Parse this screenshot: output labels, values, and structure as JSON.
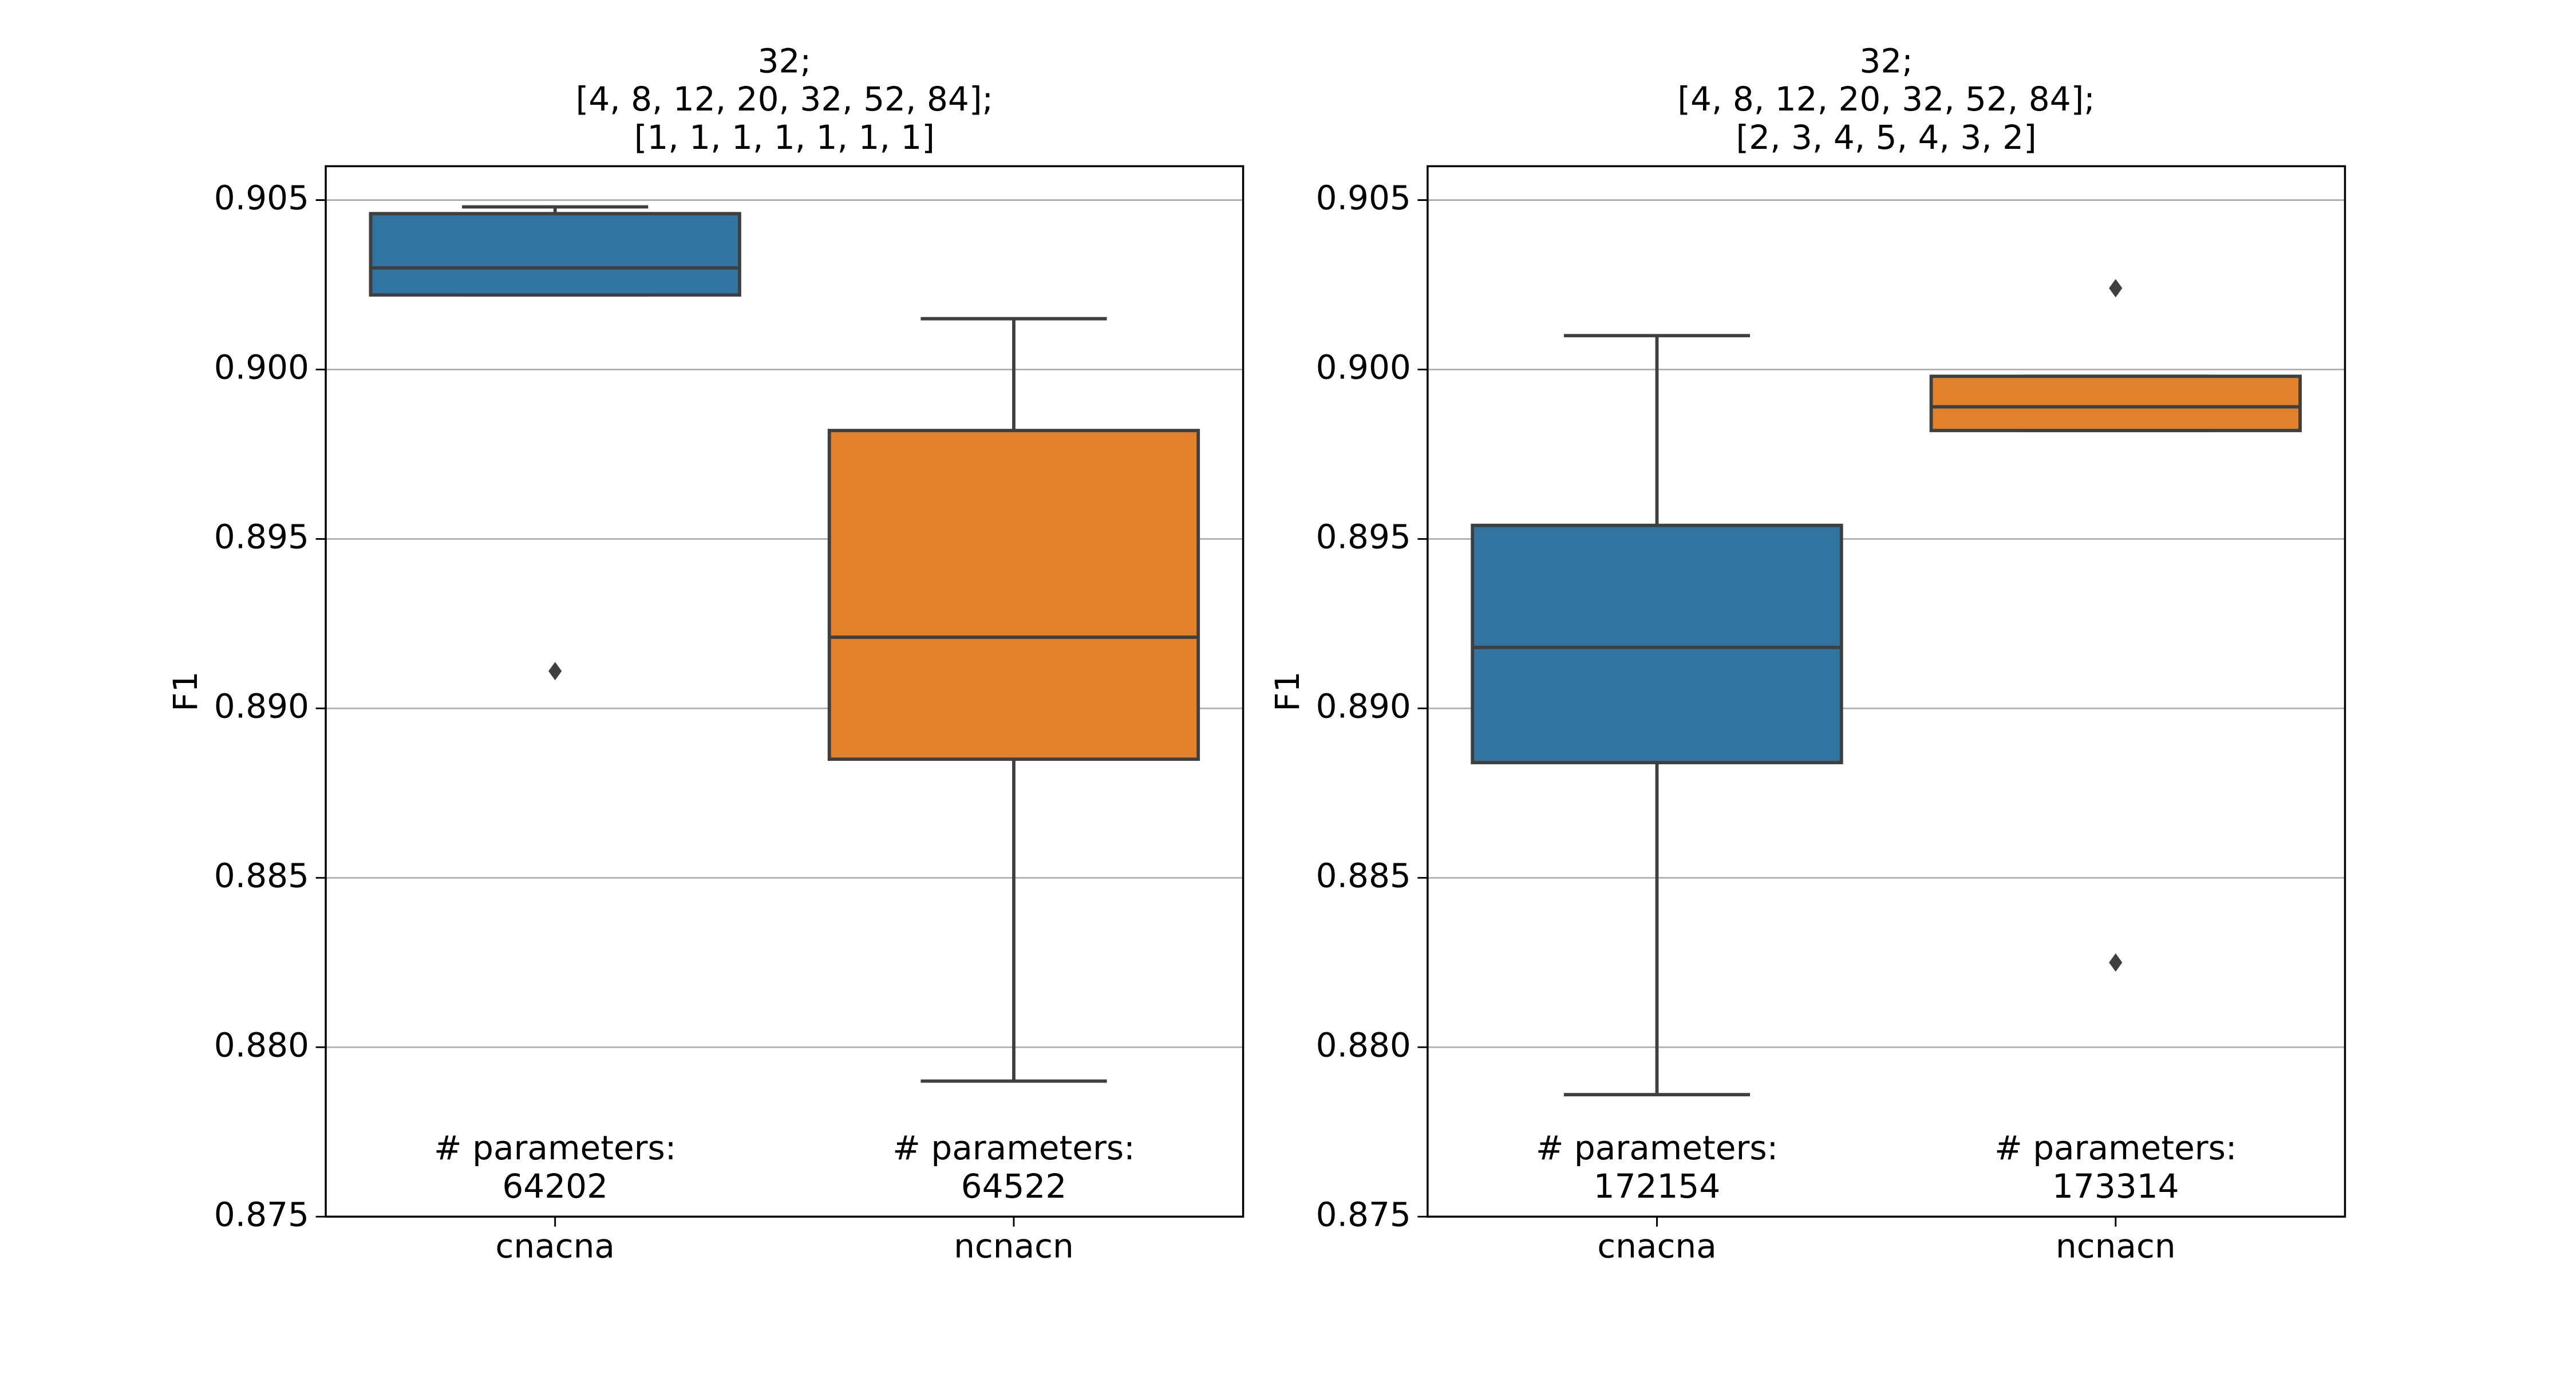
{
  "chart_data": [
    {
      "type": "box",
      "title": [
        "32;",
        "[4, 8, 12, 20, 32, 52, 84];",
        "[1, 1, 1, 1, 1, 1, 1]"
      ],
      "ylabel": "F1",
      "categories": [
        "cnacna",
        "ncnacn"
      ],
      "colors": [
        "#3274a1",
        "#e1812c"
      ],
      "boxes": [
        {
          "whislo": 0.9022,
          "q1": 0.9022,
          "med": 0.903,
          "q3": 0.9046,
          "whishi": 0.9048,
          "fliers": [
            0.8911
          ]
        },
        {
          "whislo": 0.879,
          "q1": 0.8885,
          "med": 0.8921,
          "q3": 0.8982,
          "whishi": 0.9015,
          "fliers": []
        }
      ],
      "annotations": [
        [
          "# parameters:",
          "64202"
        ],
        [
          "# parameters:",
          "64522"
        ]
      ],
      "ylim": [
        0.875,
        0.906
      ],
      "yticks": [
        0.875,
        {
          "value": 0.88,
          "label": "0.880"
        },
        0.885,
        {
          "value": 0.89,
          "label": "0.890"
        },
        0.895,
        {
          "value": 0.9,
          "label": "0.900"
        },
        0.905
      ],
      "grid": true
    },
    {
      "type": "box",
      "title": [
        "32;",
        "[4, 8, 12, 20, 32, 52, 84];",
        "[2, 3, 4, 5, 4, 3, 2]"
      ],
      "ylabel": "F1",
      "categories": [
        "cnacna",
        "ncnacn"
      ],
      "colors": [
        "#3274a1",
        "#e1812c"
      ],
      "boxes": [
        {
          "whislo": 0.8786,
          "q1": 0.8884,
          "med": 0.8918,
          "q3": 0.8954,
          "whishi": 0.901,
          "fliers": []
        },
        {
          "whislo": 0.8982,
          "q1": 0.8982,
          "med": 0.8989,
          "q3": 0.8998,
          "whishi": 0.8998,
          "fliers": [
            0.9024,
            0.8825
          ]
        }
      ],
      "annotations": [
        [
          "# parameters:",
          "172154"
        ],
        [
          "# parameters:",
          "173314"
        ]
      ],
      "ylim": [
        0.875,
        0.906
      ],
      "yticks": [
        0.875,
        {
          "value": 0.88,
          "label": "0.880"
        },
        0.885,
        {
          "value": 0.89,
          "label": "0.890"
        },
        0.895,
        {
          "value": 0.9,
          "label": "0.900"
        },
        0.905
      ],
      "grid": true
    }
  ]
}
